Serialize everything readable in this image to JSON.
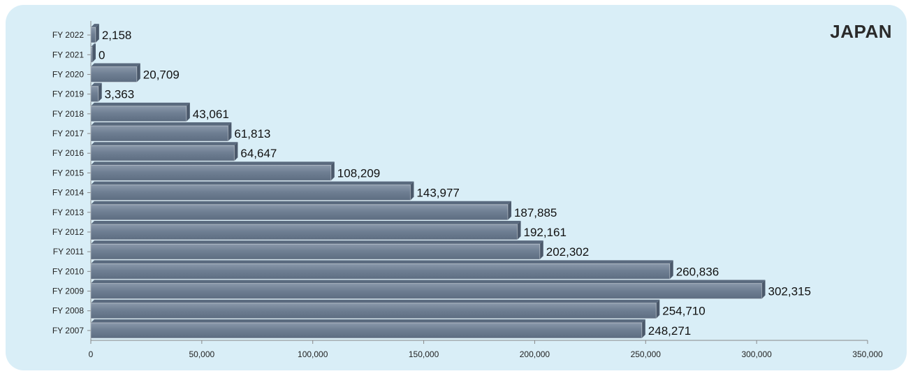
{
  "chart_data": {
    "type": "bar",
    "orientation": "horizontal",
    "title": "JAPAN",
    "categories": [
      "FY 2007",
      "FY 2008",
      "FY 2009",
      "FY 2010",
      "FY 2011",
      "FY 2012",
      "FY 2013",
      "FY 2014",
      "FY 2015",
      "FY 2016",
      "FY 2017",
      "FY 2018",
      "FY 2019",
      "FY 2020",
      "FY 2021",
      "FY 2022"
    ],
    "values": [
      248271,
      254710,
      302315,
      260836,
      202302,
      192161,
      187885,
      143977,
      108209,
      64647,
      61813,
      43061,
      3363,
      20709,
      0,
      2158
    ],
    "data_labels": [
      "248,271",
      "254,710",
      "302,315",
      "260,836",
      "202,302",
      "192,161",
      "187,885",
      "143,977",
      "108,209",
      "64,647",
      "61,813",
      "43,061",
      "3,363",
      "20,709",
      "0",
      "2,158"
    ],
    "xlim": [
      0,
      350000
    ],
    "xticks": [
      0,
      50000,
      100000,
      150000,
      200000,
      250000,
      300000,
      350000
    ],
    "xtick_labels": [
      "0",
      "50,000",
      "100,000",
      "150,000",
      "200,000",
      "250,000",
      "300,000",
      "350,000"
    ],
    "xlabel": "",
    "ylabel": "",
    "grid": false,
    "legend": "none",
    "colors": {
      "bar": "#6f7f93",
      "bar_top": "#5a6a7e",
      "bar_side": "#4b596b",
      "background": "#d9eef7"
    }
  }
}
